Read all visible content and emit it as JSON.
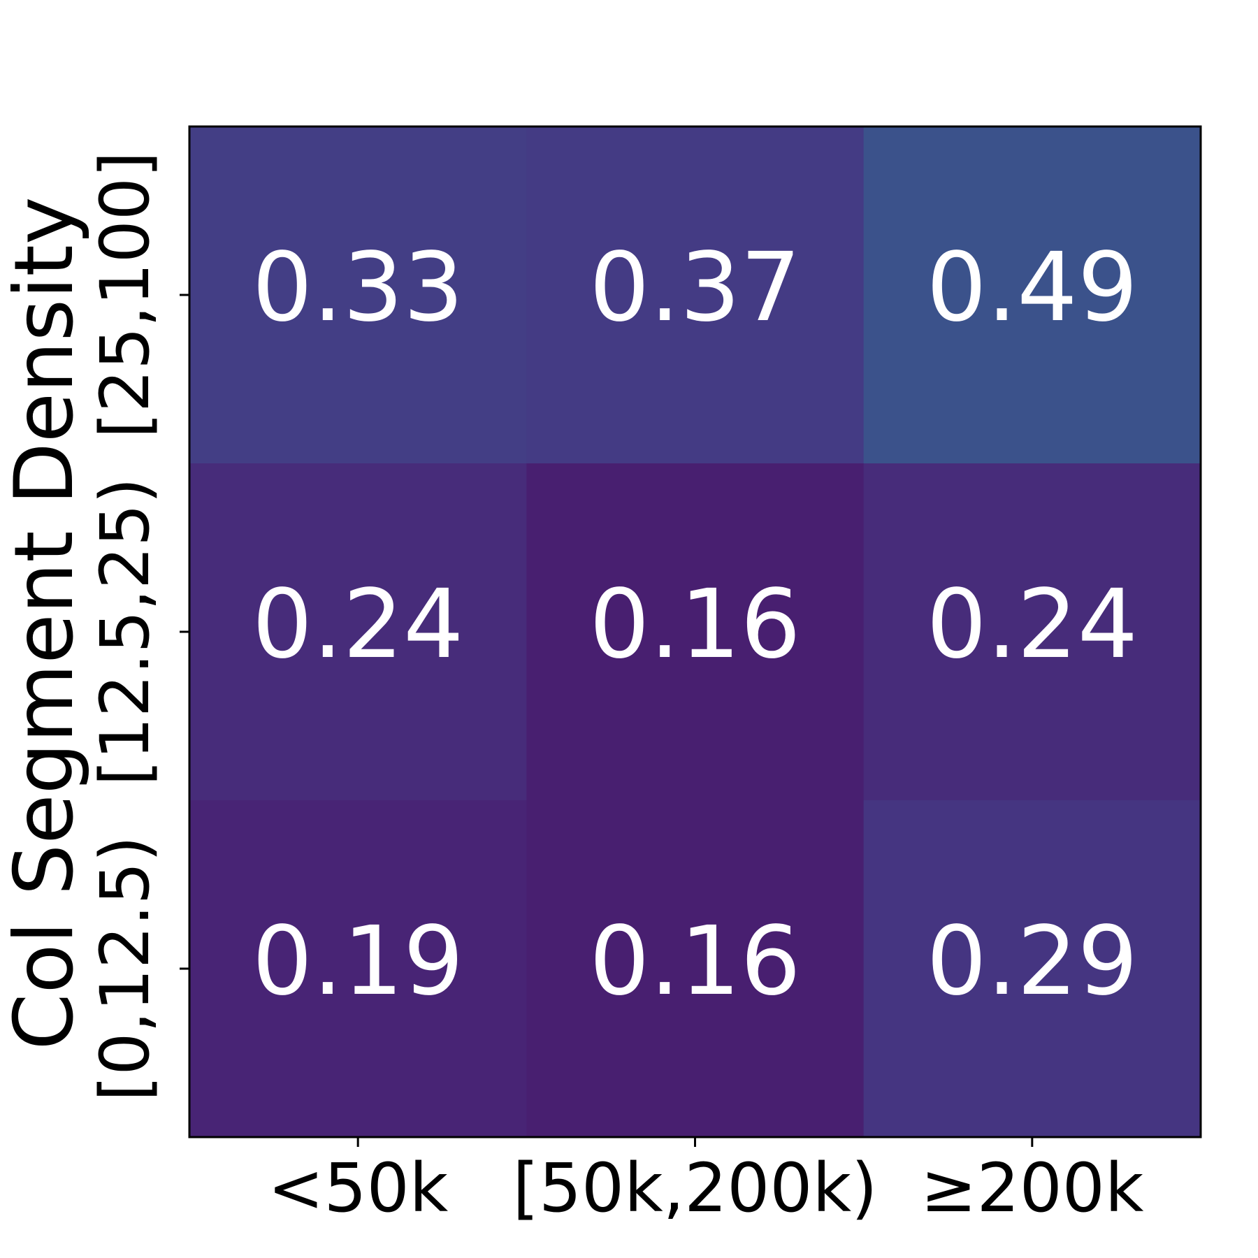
{
  "chart_data": {
    "type": "heatmap",
    "title": "",
    "xlabel": "",
    "ylabel": "Col Segment Density",
    "x_categories": [
      "<50k",
      "[50k,200k)",
      "≥200k"
    ],
    "y_categories": [
      "[25,100]",
      "[12.5,25)",
      "[0,12.5)"
    ],
    "values": [
      [
        0.33,
        0.37,
        0.49
      ],
      [
        0.24,
        0.16,
        0.24
      ],
      [
        0.19,
        0.16,
        0.29
      ]
    ],
    "value_labels": [
      [
        "0.33",
        "0.37",
        "0.49"
      ],
      [
        "0.24",
        "0.16",
        "0.24"
      ],
      [
        "0.19",
        "0.16",
        "0.29"
      ]
    ],
    "colormap": "viridis",
    "cell_colors": [
      [
        "#433e85",
        "#443b84",
        "#3b528b"
      ],
      [
        "#472c7a",
        "#481f70",
        "#472c7a"
      ],
      [
        "#482475",
        "#481f70",
        "#453581"
      ]
    ],
    "label_color": "#ffffff",
    "grid": false
  }
}
